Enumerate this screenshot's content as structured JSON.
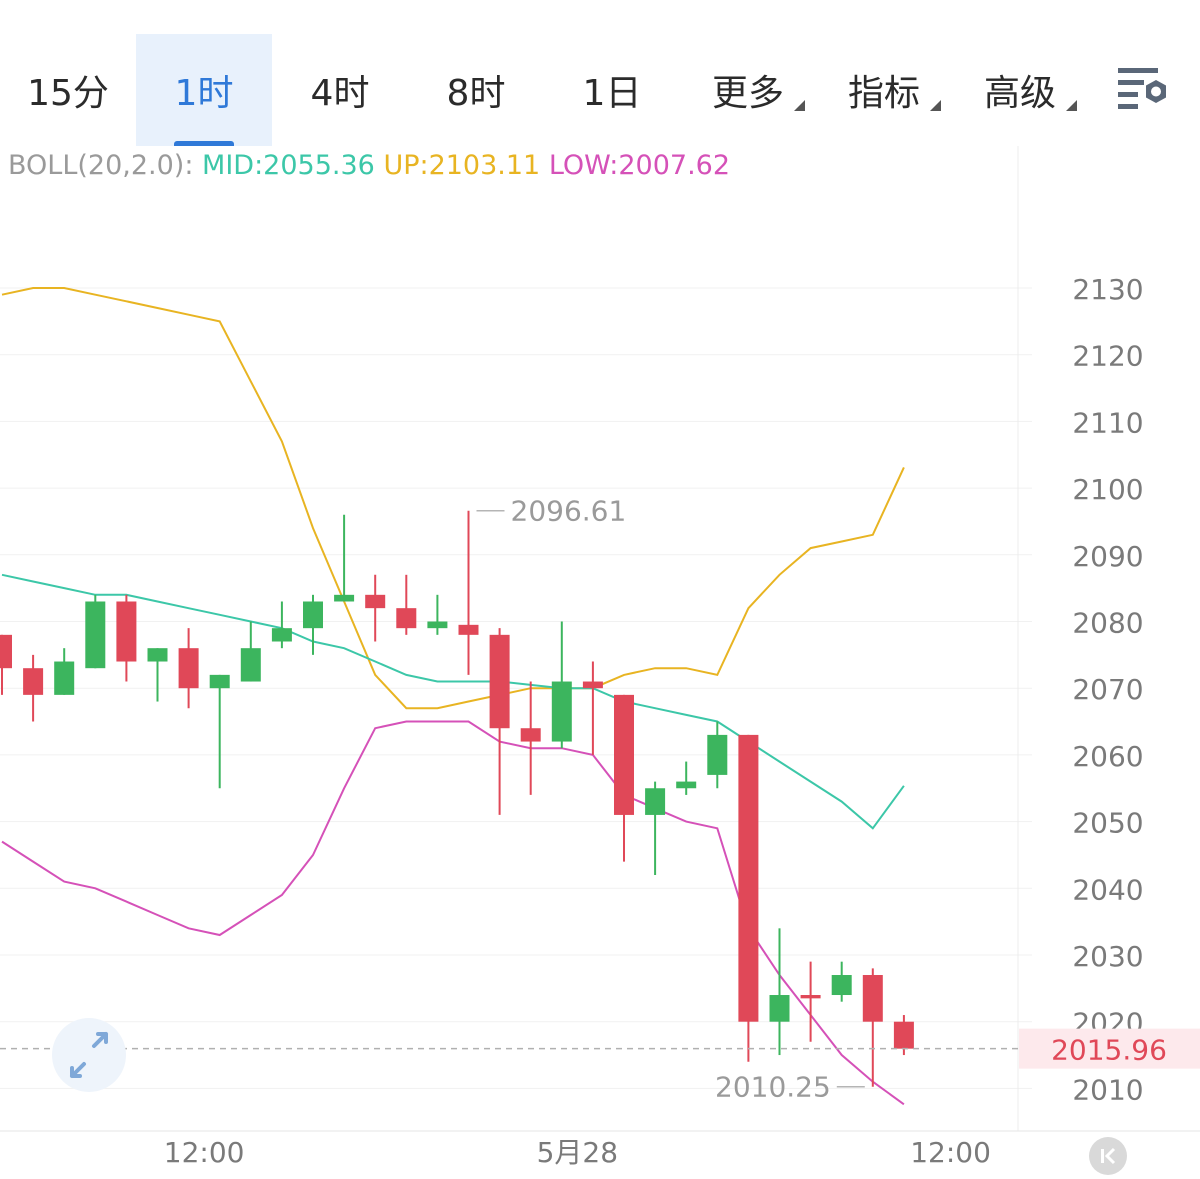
{
  "tabs": [
    {
      "label": "15分",
      "active": false,
      "dropdown": false
    },
    {
      "label": "1时",
      "active": true,
      "dropdown": false
    },
    {
      "label": "4时",
      "active": false,
      "dropdown": false
    },
    {
      "label": "8时",
      "active": false,
      "dropdown": false
    },
    {
      "label": "1日",
      "active": false,
      "dropdown": false
    },
    {
      "label": "更多",
      "active": false,
      "dropdown": true
    },
    {
      "label": "指标",
      "active": false,
      "dropdown": true
    },
    {
      "label": "高级",
      "active": false,
      "dropdown": true
    }
  ],
  "settings_icon": "chart-settings-icon",
  "boll": {
    "prefix": "BOLL(20,2.0):",
    "mid": "MID:2055.36",
    "up": "UP:2103.11",
    "low": "LOW:2007.62"
  },
  "colors": {
    "accent": "#2f79d8",
    "up_candle": "#3cb55e",
    "down_candle": "#e04858",
    "mid_line": "#3cc7a8",
    "upper_band": "#e8b422",
    "lower_band": "#d551b8",
    "current_price_bg": "#fde9ec",
    "current_price_text": "#e04858"
  },
  "chart_data": {
    "type": "candlestick",
    "title": "",
    "xlabel": "",
    "ylabel": "",
    "ylim": [
      2005,
      2135
    ],
    "y_ticks": [
      2130,
      2120,
      2110,
      2100,
      2090,
      2080,
      2070,
      2060,
      2050,
      2040,
      2030,
      2020,
      2010
    ],
    "x_tick_labels": [
      {
        "index": 6.5,
        "label": "12:00"
      },
      {
        "index": 18.5,
        "label": "5月28"
      },
      {
        "index": 30.5,
        "label": "12:00"
      }
    ],
    "candles": [
      {
        "o": 2078,
        "h": 2078,
        "l": 2069,
        "c": 2073
      },
      {
        "o": 2073,
        "h": 2075,
        "l": 2065,
        "c": 2069
      },
      {
        "o": 2069,
        "h": 2076,
        "l": 2069,
        "c": 2074
      },
      {
        "o": 2073,
        "h": 2084,
        "l": 2073,
        "c": 2083
      },
      {
        "o": 2083,
        "h": 2084,
        "l": 2071,
        "c": 2074
      },
      {
        "o": 2074,
        "h": 2076,
        "l": 2068,
        "c": 2076
      },
      {
        "o": 2076,
        "h": 2079,
        "l": 2067,
        "c": 2070
      },
      {
        "o": 2070,
        "h": 2072,
        "l": 2055,
        "c": 2072
      },
      {
        "o": 2071,
        "h": 2080,
        "l": 2071,
        "c": 2076
      },
      {
        "o": 2077,
        "h": 2083,
        "l": 2076,
        "c": 2079
      },
      {
        "o": 2079,
        "h": 2084,
        "l": 2075,
        "c": 2083
      },
      {
        "o": 2083,
        "h": 2096,
        "l": 2083,
        "c": 2084
      },
      {
        "o": 2084,
        "h": 2087,
        "l": 2077,
        "c": 2082
      },
      {
        "o": 2082,
        "h": 2087,
        "l": 2078,
        "c": 2079
      },
      {
        "o": 2079,
        "h": 2084,
        "l": 2078,
        "c": 2080
      },
      {
        "o": 2079.5,
        "h": 2096.61,
        "l": 2072,
        "c": 2078
      },
      {
        "o": 2078,
        "h": 2079,
        "l": 2051,
        "c": 2064
      },
      {
        "o": 2064,
        "h": 2071,
        "l": 2054,
        "c": 2062
      },
      {
        "o": 2062,
        "h": 2080,
        "l": 2061,
        "c": 2071
      },
      {
        "o": 2071,
        "h": 2074,
        "l": 2060,
        "c": 2070
      },
      {
        "o": 2069,
        "h": 2069,
        "l": 2044,
        "c": 2051
      },
      {
        "o": 2051,
        "h": 2056,
        "l": 2042,
        "c": 2055
      },
      {
        "o": 2055,
        "h": 2059,
        "l": 2054,
        "c": 2056
      },
      {
        "o": 2057,
        "h": 2065,
        "l": 2055,
        "c": 2063
      },
      {
        "o": 2063,
        "h": 2063,
        "l": 2014,
        "c": 2020
      },
      {
        "o": 2020,
        "h": 2034,
        "l": 2015,
        "c": 2024
      },
      {
        "o": 2024,
        "h": 2029,
        "l": 2017,
        "c": 2023.5
      },
      {
        "o": 2024,
        "h": 2029,
        "l": 2023,
        "c": 2027
      },
      {
        "o": 2027,
        "h": 2028,
        "l": 2010.25,
        "c": 2020
      },
      {
        "o": 2020,
        "h": 2021,
        "l": 2015,
        "c": 2015.96
      }
    ],
    "boll_mid": [
      2087,
      2086,
      2085,
      2084,
      2084,
      2083,
      2082,
      2081,
      2080,
      2079,
      2077,
      2076,
      2074,
      2072,
      2071,
      2071,
      2071,
      2070.5,
      2070,
      2070,
      2068,
      2067,
      2066,
      2065,
      2062,
      2059,
      2056,
      2053,
      2049,
      2055.36
    ],
    "boll_up": [
      2129,
      2130,
      2130,
      2129,
      2128,
      2127,
      2126,
      2125,
      2116,
      2107,
      2094,
      2083,
      2072,
      2067,
      2067,
      2068,
      2069,
      2070,
      2070,
      2070,
      2072,
      2073,
      2073,
      2072,
      2082,
      2087,
      2091,
      2092,
      2093,
      2103.11
    ],
    "boll_low": [
      2047,
      2044,
      2041,
      2040,
      2038,
      2036,
      2034,
      2033,
      2036,
      2039,
      2045,
      2055,
      2064,
      2065,
      2065,
      2065,
      2062,
      2061,
      2061,
      2060,
      2054,
      2052,
      2050,
      2049,
      2034,
      2027,
      2021,
      2015,
      2011,
      2007.62
    ],
    "annotations": [
      {
        "index": 15,
        "value": 2096.61,
        "label": "2096.61",
        "side": "right"
      },
      {
        "index": 28,
        "value": 2010.25,
        "label": "2010.25",
        "side": "left"
      }
    ],
    "current_price": 2015.96,
    "current_price_label": "2015.96"
  }
}
